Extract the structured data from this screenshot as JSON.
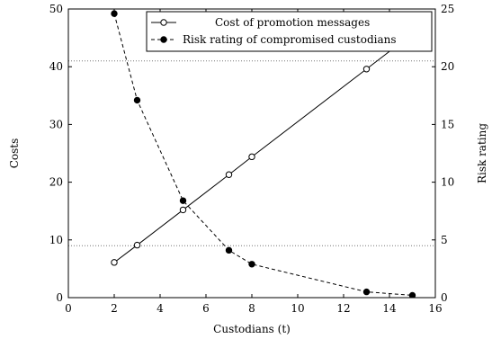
{
  "chart_data": {
    "type": "line",
    "xlabel": "Custodians (t)",
    "ylabel_left": "Costs",
    "ylabel_right": "Risk rating",
    "xlim": [
      0,
      16
    ],
    "ylim_left": [
      0,
      50
    ],
    "ylim_right": [
      0,
      25
    ],
    "xticks": [
      0,
      2,
      4,
      6,
      8,
      10,
      12,
      14,
      16
    ],
    "yticks_left": [
      0,
      10,
      20,
      30,
      40,
      50
    ],
    "yticks_right": [
      0,
      5,
      10,
      15,
      20,
      25
    ],
    "reference_lines_right": [
      20.5,
      4.5
    ],
    "legend_position": "top-right",
    "series": [
      {
        "name": "Cost of promotion messages",
        "axis": "left",
        "marker": "open-circle",
        "style": "solid",
        "x": [
          2,
          3,
          5,
          7,
          8,
          13,
          15
        ],
        "y": [
          6.1,
          9.1,
          15.2,
          21.3,
          24.4,
          39.6,
          45.7
        ]
      },
      {
        "name": "Risk rating of compromised custodians",
        "axis": "right",
        "marker": "filled-circle",
        "style": "dashed",
        "x": [
          2,
          3,
          5,
          7,
          8,
          13,
          15
        ],
        "y": [
          24.6,
          17.1,
          8.4,
          4.1,
          2.9,
          0.5,
          0.2
        ]
      }
    ]
  }
}
